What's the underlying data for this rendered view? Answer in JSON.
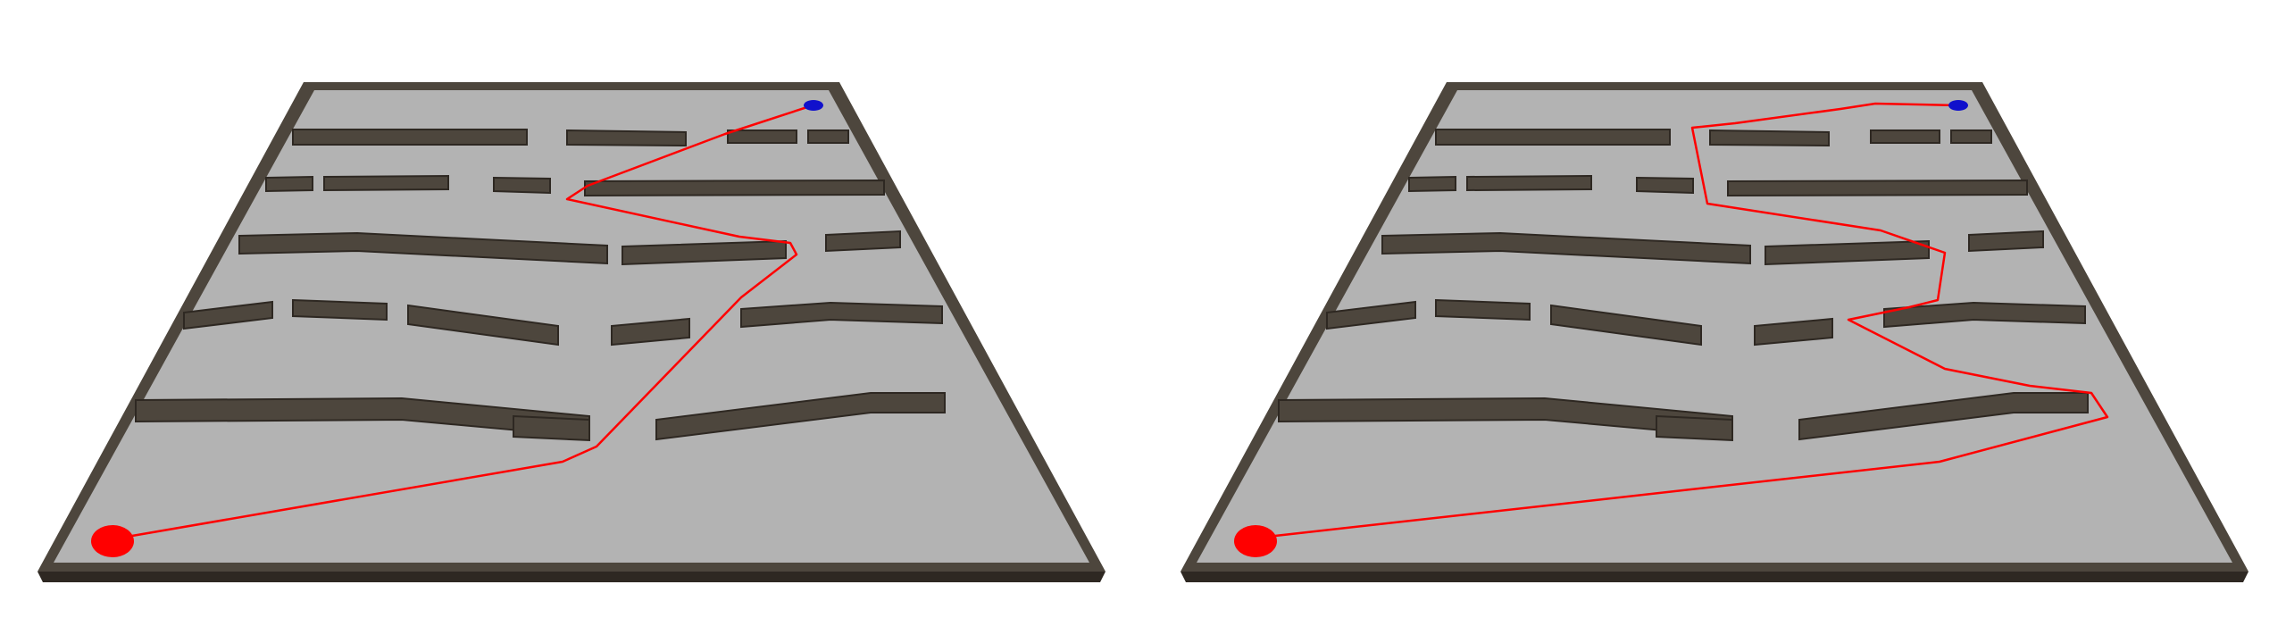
{
  "colors": {
    "background": "#ffffff",
    "floor": "#b3b3b3",
    "wall_top": "#4d463d",
    "wall_side": "#2e2822",
    "path": "#ff0000",
    "start_marker": "#ff0000",
    "goal_marker": "#1010cc"
  },
  "views": [
    {
      "id": "left",
      "label": ""
    },
    {
      "id": "right",
      "label": ""
    }
  ]
}
